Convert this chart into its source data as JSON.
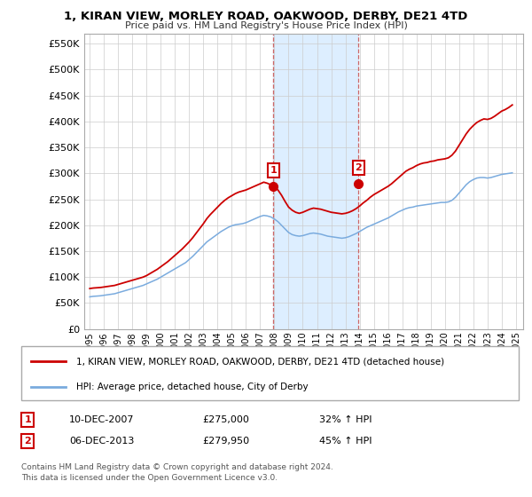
{
  "title": "1, KIRAN VIEW, MORLEY ROAD, OAKWOOD, DERBY, DE21 4TD",
  "subtitle": "Price paid vs. HM Land Registry's House Price Index (HPI)",
  "legend_line1": "1, KIRAN VIEW, MORLEY ROAD, OAKWOOD, DERBY, DE21 4TD (detached house)",
  "legend_line2": "HPI: Average price, detached house, City of Derby",
  "footnote": "Contains HM Land Registry data © Crown copyright and database right 2024.\nThis data is licensed under the Open Government Licence v3.0.",
  "sale1_date": "10-DEC-2007",
  "sale1_price": "£275,000",
  "sale1_hpi": "32% ↑ HPI",
  "sale1_year": 2007.92,
  "sale1_value": 275000,
  "sale2_date": "06-DEC-2013",
  "sale2_price": "£279,950",
  "sale2_hpi": "45% ↑ HPI",
  "sale2_year": 2013.92,
  "sale2_value": 279950,
  "red_color": "#cc0000",
  "blue_color": "#7aabde",
  "shade_color": "#ddeeff",
  "grid_color": "#cccccc",
  "background_color": "#ffffff",
  "ylim": [
    0,
    570000
  ],
  "xlim_start": 1994.6,
  "xlim_end": 2025.5,
  "yticks": [
    0,
    50000,
    100000,
    150000,
    200000,
    250000,
    300000,
    350000,
    400000,
    450000,
    500000,
    550000
  ],
  "xticks": [
    1995,
    1996,
    1997,
    1998,
    1999,
    2000,
    2001,
    2002,
    2003,
    2004,
    2005,
    2006,
    2007,
    2008,
    2009,
    2010,
    2011,
    2012,
    2013,
    2014,
    2015,
    2016,
    2017,
    2018,
    2019,
    2020,
    2021,
    2022,
    2023,
    2024,
    2025
  ],
  "years_hpi": [
    1995.0,
    1995.25,
    1995.5,
    1995.75,
    1996.0,
    1996.25,
    1996.5,
    1996.75,
    1997.0,
    1997.25,
    1997.5,
    1997.75,
    1998.0,
    1998.25,
    1998.5,
    1998.75,
    1999.0,
    1999.25,
    1999.5,
    1999.75,
    2000.0,
    2000.25,
    2000.5,
    2000.75,
    2001.0,
    2001.25,
    2001.5,
    2001.75,
    2002.0,
    2002.25,
    2002.5,
    2002.75,
    2003.0,
    2003.25,
    2003.5,
    2003.75,
    2004.0,
    2004.25,
    2004.5,
    2004.75,
    2005.0,
    2005.25,
    2005.5,
    2005.75,
    2006.0,
    2006.25,
    2006.5,
    2006.75,
    2007.0,
    2007.25,
    2007.5,
    2007.75,
    2008.0,
    2008.25,
    2008.5,
    2008.75,
    2009.0,
    2009.25,
    2009.5,
    2009.75,
    2010.0,
    2010.25,
    2010.5,
    2010.75,
    2011.0,
    2011.25,
    2011.5,
    2011.75,
    2012.0,
    2012.25,
    2012.5,
    2012.75,
    2013.0,
    2013.25,
    2013.5,
    2013.75,
    2014.0,
    2014.25,
    2014.5,
    2014.75,
    2015.0,
    2015.25,
    2015.5,
    2015.75,
    2016.0,
    2016.25,
    2016.5,
    2016.75,
    2017.0,
    2017.25,
    2017.5,
    2017.75,
    2018.0,
    2018.25,
    2018.5,
    2018.75,
    2019.0,
    2019.25,
    2019.5,
    2019.75,
    2020.0,
    2020.25,
    2020.5,
    2020.75,
    2021.0,
    2021.25,
    2021.5,
    2021.75,
    2022.0,
    2022.25,
    2022.5,
    2022.75,
    2023.0,
    2023.25,
    2023.5,
    2023.75,
    2024.0,
    2024.25,
    2024.5,
    2024.75
  ],
  "hpi_values": [
    62000,
    63000,
    63500,
    64000,
    65000,
    66000,
    67000,
    68000,
    70000,
    72000,
    74000,
    76000,
    78000,
    80000,
    82000,
    84000,
    87000,
    90000,
    93000,
    96000,
    100000,
    104000,
    108000,
    112000,
    116000,
    120000,
    124000,
    128000,
    134000,
    140000,
    147000,
    154000,
    161000,
    168000,
    173000,
    178000,
    183000,
    188000,
    192000,
    196000,
    199000,
    201000,
    202000,
    203000,
    205000,
    208000,
    211000,
    214000,
    217000,
    219000,
    218000,
    216000,
    212000,
    207000,
    200000,
    193000,
    186000,
    182000,
    180000,
    179000,
    180000,
    182000,
    184000,
    185000,
    184000,
    183000,
    181000,
    179000,
    178000,
    177000,
    176000,
    175000,
    176000,
    178000,
    181000,
    184000,
    188000,
    192000,
    196000,
    199000,
    202000,
    205000,
    208000,
    211000,
    214000,
    218000,
    222000,
    226000,
    229000,
    232000,
    234000,
    235000,
    237000,
    238000,
    239000,
    240000,
    241000,
    242000,
    243000,
    244000,
    244000,
    245000,
    248000,
    254000,
    262000,
    270000,
    278000,
    284000,
    288000,
    291000,
    292000,
    292000,
    291000,
    292000,
    294000,
    296000,
    298000,
    299000,
    300000,
    301000
  ],
  "red_values": [
    78000,
    79000,
    79500,
    80000,
    81000,
    82000,
    83000,
    84000,
    86000,
    88000,
    90000,
    92000,
    94000,
    96000,
    98000,
    100000,
    103000,
    107000,
    111000,
    115000,
    120000,
    125000,
    130000,
    136000,
    142000,
    148000,
    154000,
    161000,
    168000,
    176000,
    185000,
    194000,
    203000,
    213000,
    221000,
    228000,
    235000,
    242000,
    248000,
    253000,
    257000,
    261000,
    264000,
    266000,
    268000,
    271000,
    274000,
    277000,
    280000,
    283000,
    281000,
    278000,
    275000,
    268000,
    258000,
    246000,
    235000,
    229000,
    225000,
    223000,
    225000,
    228000,
    231000,
    233000,
    232000,
    231000,
    229000,
    227000,
    225000,
    224000,
    223000,
    222000,
    223000,
    225000,
    228000,
    232000,
    237000,
    243000,
    248000,
    254000,
    259000,
    263000,
    267000,
    271000,
    275000,
    280000,
    286000,
    292000,
    298000,
    304000,
    308000,
    311000,
    315000,
    318000,
    320000,
    321000,
    323000,
    324000,
    326000,
    327000,
    328000,
    330000,
    335000,
    343000,
    354000,
    365000,
    376000,
    385000,
    392000,
    398000,
    402000,
    405000,
    404000,
    406000,
    410000,
    415000,
    420000,
    423000,
    427000,
    432000
  ]
}
